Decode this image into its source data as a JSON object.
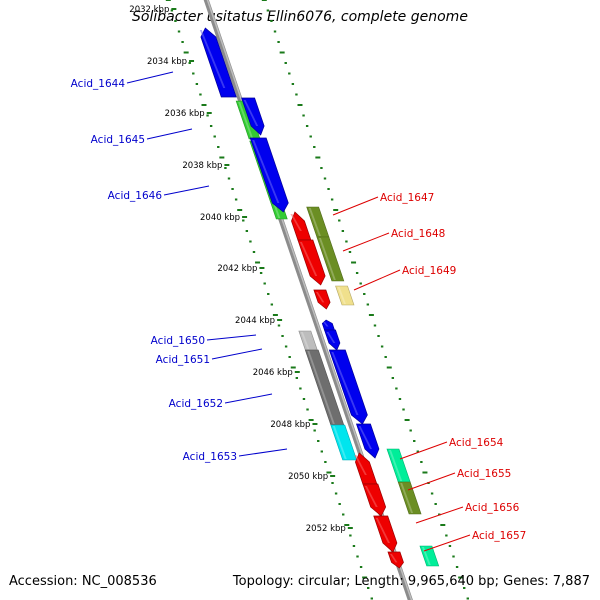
{
  "title": "Solibacter usitatus Ellin6076, complete genome",
  "footer": {
    "accession": "Accession: NC_008536",
    "summary": "Topology: circular; Length: 9,965,640 bp; Genes: 7,887"
  },
  "colors": {
    "backbone": "#8c8c8c",
    "tick": "#1a7a1a",
    "label_left": "#0000cc",
    "label_right": "#dd0000",
    "ruler_text": "#000000"
  },
  "ruler": {
    "unit": "kbp",
    "labels": [
      "2032 kbp",
      "2034 kbp",
      "2036 kbp",
      "2038 kbp",
      "2040 kbp",
      "2042 kbp",
      "2044 kbp",
      "2046 kbp",
      "2048 kbp",
      "2050 kbp",
      "2052 kbp"
    ]
  },
  "gene_labels": {
    "left": [
      "Acid_1644",
      "Acid_1645",
      "Acid_1646",
      "Acid_1650",
      "Acid_1651",
      "Acid_1652",
      "Acid_1653"
    ],
    "right": [
      "Acid_1647",
      "Acid_1648",
      "Acid_1649",
      "Acid_1654",
      "Acid_1655",
      "Acid_1656",
      "Acid_1657"
    ]
  },
  "genes": [
    {
      "name": "Acid_1644",
      "color": "#0000ee",
      "strand": "-"
    },
    {
      "name": "Acid_1645",
      "color": "#0000ee",
      "strand": "+"
    },
    {
      "name": "Acid_1646",
      "color": "#0000ee",
      "strand": "+"
    },
    {
      "name": "Acid_1647",
      "color": "#ee0000",
      "strand": "-"
    },
    {
      "name": "Acid_1648",
      "color": "#ee0000",
      "strand": "+"
    },
    {
      "name": "Acid_1649",
      "color": "#ee0000",
      "strand": "+"
    },
    {
      "name": "Acid_1650",
      "color": "#0000ee",
      "strand": "-"
    },
    {
      "name": "Acid_1651",
      "color": "#0000ee",
      "strand": "+"
    },
    {
      "name": "Acid_1652",
      "color": "#0000ee",
      "strand": "+"
    },
    {
      "name": "Acid_1653",
      "color": "#0000ee",
      "strand": "+"
    },
    {
      "name": "Acid_1654",
      "color": "#ee0000",
      "strand": "-"
    },
    {
      "name": "Acid_1655",
      "color": "#ee0000",
      "strand": "+"
    },
    {
      "name": "Acid_1656",
      "color": "#ee0000",
      "strand": "+"
    },
    {
      "name": "Acid_1657",
      "color": "#ee0000",
      "strand": "+"
    }
  ],
  "cog_blocks": [
    {
      "color": "#33cc33"
    },
    {
      "color": "#33cc33"
    },
    {
      "color": "#6b8e23"
    },
    {
      "color": "#6b8e23"
    },
    {
      "color": "#f0e08c"
    },
    {
      "color": "#bdbdbd"
    },
    {
      "color": "#6e6e6e"
    },
    {
      "color": "#00e5ee"
    },
    {
      "color": "#00ee99"
    },
    {
      "color": "#6b8e23"
    },
    {
      "color": "#00ee99"
    }
  ]
}
